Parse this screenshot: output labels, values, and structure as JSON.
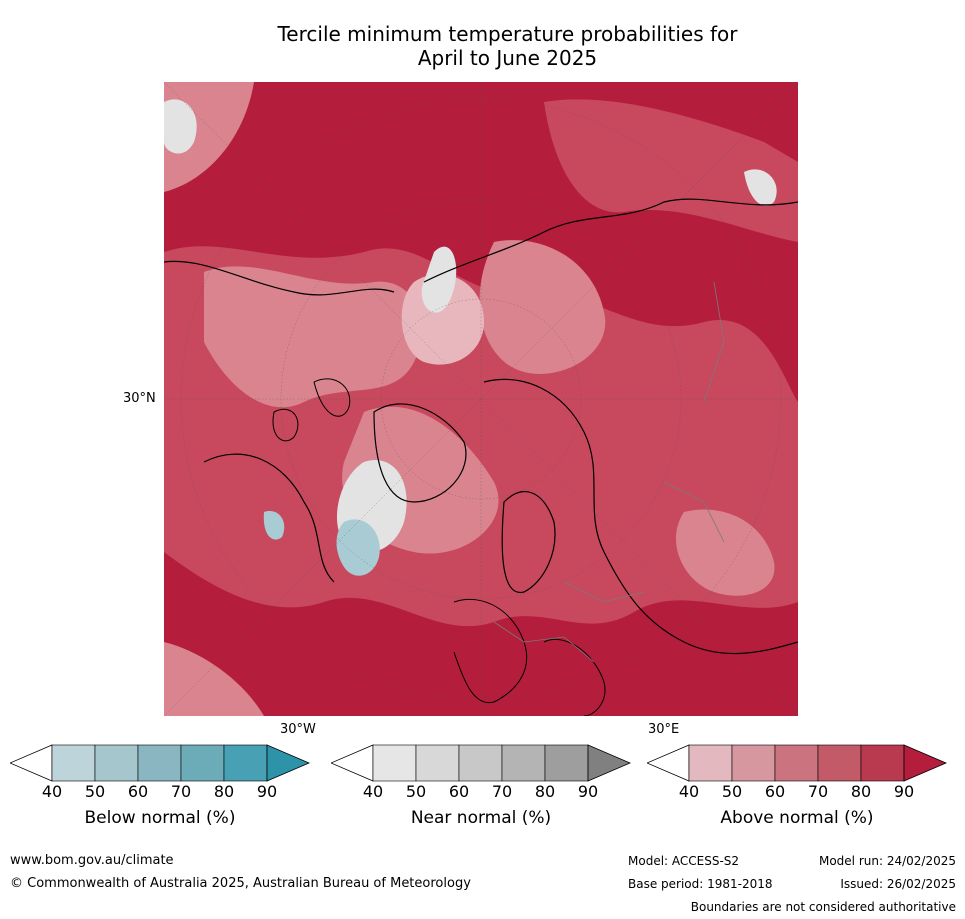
{
  "title_line1": "Tercile minimum temperature probabilities for",
  "title_line2": "April to June 2025",
  "map": {
    "labels": {
      "lat": "30°N",
      "lon_w": "30°W",
      "lon_e": "30°E"
    },
    "colors": {
      "dominant": "#b41d3c",
      "mid": "#c8485e",
      "light": "#d9848f",
      "pale": "#e8b7bd",
      "near": "#e3e3e3",
      "below": "#a9cbd3"
    }
  },
  "colorbars": [
    {
      "label": "Below normal (%)",
      "ticks": [
        "40",
        "50",
        "60",
        "70",
        "80",
        "90"
      ],
      "colors": [
        "#ffffff",
        "#bcd4da",
        "#a5c6cd",
        "#8ab6c1",
        "#6cabb8",
        "#47a0b3",
        "#2c93a8"
      ]
    },
    {
      "label": "Near normal (%)",
      "ticks": [
        "40",
        "50",
        "60",
        "70",
        "80",
        "90"
      ],
      "colors": [
        "#ffffff",
        "#e6e6e6",
        "#d8d8d8",
        "#c8c8c8",
        "#b4b4b4",
        "#9e9e9e",
        "#808080"
      ]
    },
    {
      "label": "Above normal (%)",
      "ticks": [
        "40",
        "50",
        "60",
        "70",
        "80",
        "90"
      ],
      "colors": [
        "#ffffff",
        "#e3b9bf",
        "#d7979f",
        "#cb747f",
        "#c25a67",
        "#b93a4f",
        "#b41d3c"
      ]
    }
  ],
  "footer": {
    "website": "www.bom.gov.au/climate",
    "copyright": "© Commonwealth of Australia 2025, Australian Bureau of Meteorology",
    "model": "Model: ACCESS-S2",
    "model_run": "Model run: 24/02/2025",
    "base_period": "Base period: 1981-2018",
    "issued": "Issued: 26/02/2025",
    "disclaimer": "Boundaries are not considered authoritative"
  }
}
